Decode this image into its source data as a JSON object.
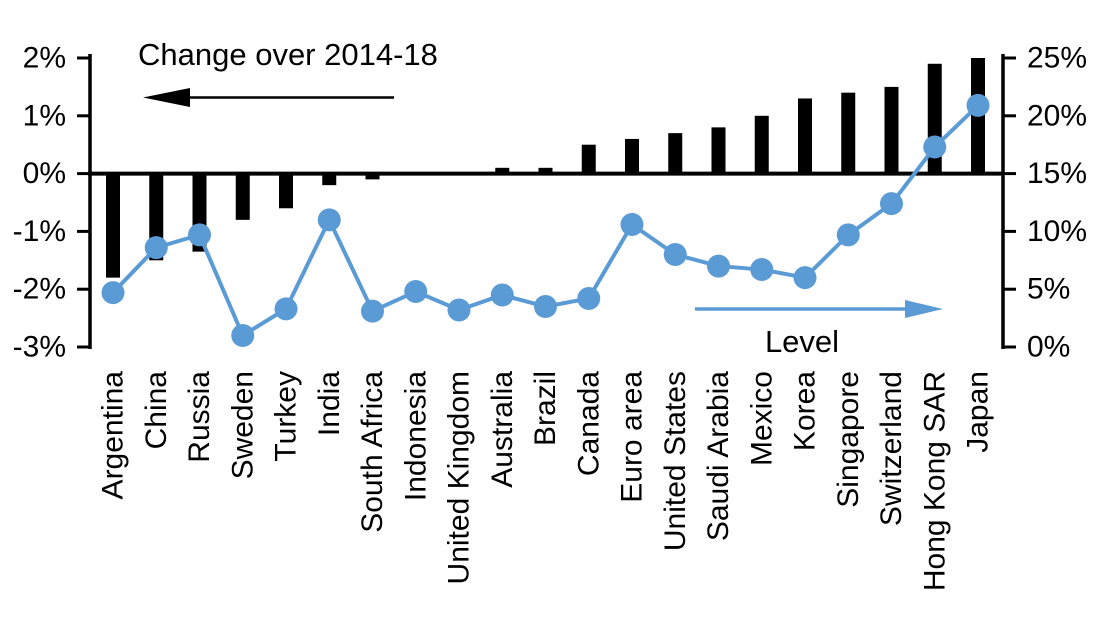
{
  "chart_data": {
    "type": "combo-bar-line",
    "background": "#ffffff",
    "grid": false,
    "categories": [
      "Argentina",
      "China",
      "Russia",
      "Sweden",
      "Turkey",
      "India",
      "South Africa",
      "Indonesia",
      "United Kingdom",
      "Australia",
      "Brazil",
      "Canada",
      "Euro area",
      "United States",
      "Saudi Arabia",
      "Mexico",
      "Korea",
      "Singapore",
      "Switzerland",
      "Hong Kong SAR",
      "Japan"
    ],
    "series": [
      {
        "name": "Change over 2014-18",
        "type": "bar",
        "axis": "left",
        "unit": "%",
        "color": "#000000",
        "values": [
          -1.8,
          -1.5,
          -1.35,
          -0.8,
          -0.6,
          -0.2,
          -0.1,
          0,
          0,
          0.1,
          0.1,
          0.5,
          0.6,
          0.7,
          0.8,
          1.0,
          1.3,
          1.4,
          1.5,
          1.9,
          2.0
        ]
      },
      {
        "name": "Level",
        "type": "line",
        "axis": "right",
        "unit": "%",
        "color": "#5b9bd5",
        "values": [
          4.7,
          8.6,
          9.7,
          1.0,
          3.3,
          11.0,
          3.1,
          4.8,
          3.2,
          4.5,
          3.5,
          4.2,
          10.6,
          8.0,
          7.0,
          6.7,
          6.0,
          9.7,
          12.4,
          17.3,
          20.9
        ]
      }
    ],
    "left_axis": {
      "min": -3,
      "max": 2,
      "tick_values": [
        2,
        1,
        0,
        -1,
        -2,
        -3
      ],
      "tick_labels": [
        "2%",
        "1%",
        "0%",
        "-1%",
        "-2%",
        "-3%"
      ]
    },
    "right_axis": {
      "min": 0,
      "max": 25,
      "tick_values": [
        25,
        20,
        15,
        10,
        5,
        0
      ],
      "tick_labels": [
        "25%",
        "20%",
        "15%",
        "10%",
        "5%",
        "0%"
      ]
    },
    "annotations": {
      "bar_series_label": "Change over 2014-18",
      "bar_arrow_direction": "left",
      "bar_arrow_color": "#000000",
      "line_series_label": "Level",
      "line_arrow_direction": "right",
      "line_arrow_color": "#5b9bd5"
    }
  }
}
